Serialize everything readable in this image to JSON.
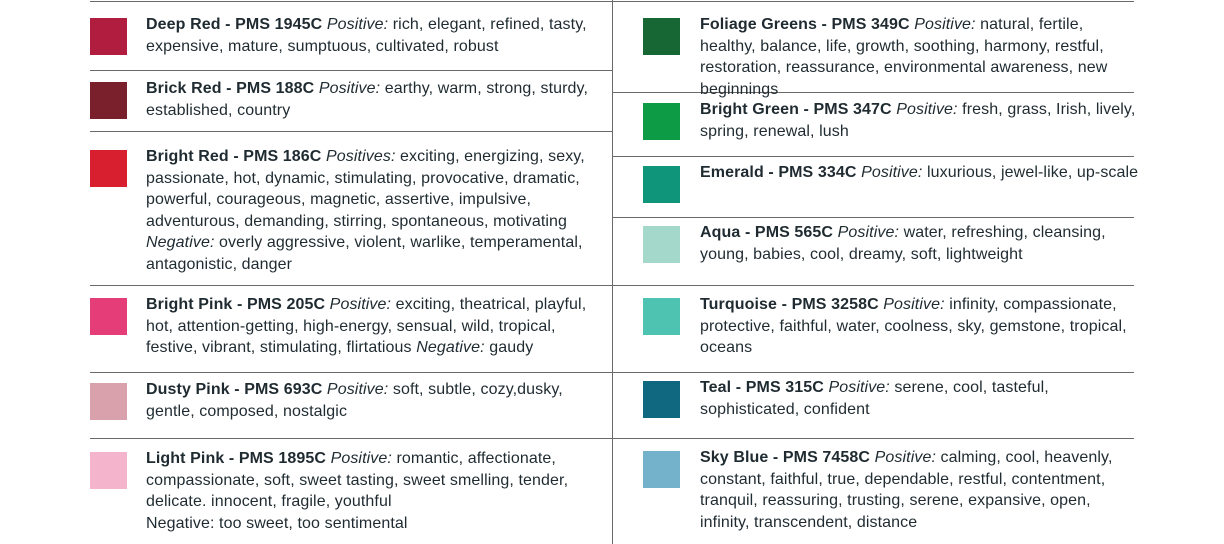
{
  "left": [
    {
      "title": "Deep Red - PMS 1945C",
      "pos_label": "Positive:",
      "pos_text": "rich, elegant, refined, tasty, expensive, mature, sumptuous, cultivated, robust",
      "color": "#b01d3f"
    },
    {
      "title": "Brick Red - PMS 188C",
      "pos_label": "Positive:",
      "pos_text": "earthy, warm, strong, sturdy, established, country",
      "color": "#7a1f2c"
    },
    {
      "title": "Bright Red - PMS 186C",
      "pos_label": "Positives:",
      "pos_text": "exciting, energizing, sexy, passionate, hot, dynamic, stimulating, provocative, dramatic, powerful, courageous, magnetic, assertive, impulsive, adventurous, demanding, stirring, spontaneous, motivating",
      "neg_label": "Negative:",
      "neg_text": "overly aggressive, violent, warlike, temperamental, antagonistic, danger",
      "color": "#d71f30"
    },
    {
      "title": "Bright Pink - PMS 205C",
      "pos_label": "Positive:",
      "pos_text": "exciting, theatrical, playful, hot, attention-getting, high-energy, sensual, wild, tropical, festive, vibrant, stimulating, flirtatious",
      "neg_label": "Negative:",
      "neg_text": "gaudy",
      "color": "#e43d78"
    },
    {
      "title": "Dusty Pink - PMS 693C",
      "pos_label": "Positive:",
      "pos_text": "soft, subtle, cozy,dusky, gentle, composed, nostalgic",
      "color": "#d8a1ac"
    },
    {
      "title": "Light Pink - PMS 1895C",
      "pos_label": "Positive:",
      "pos_text": "romantic, affectionate, compassionate, soft, sweet tasting, sweet smelling, tender, delicate. innocent, fragile, youthful",
      "note": "Negative: too sweet, too sentimental",
      "color": "#f4b5cc"
    }
  ],
  "right": [
    {
      "title": "Foliage Greens - PMS 349C",
      "pos_label": "Positive:",
      "pos_text": "natural, fertile, healthy, balance, life, growth, soothing, harmony, restful, restoration, reassurance, environmental awareness, new beginnings",
      "color": "#176735"
    },
    {
      "title": "Bright Green - PMS 347C",
      "pos_label": "Positive:",
      "pos_text": "fresh, grass, Irish, lively, spring, renewal, lush",
      "color": "#0d9b46"
    },
    {
      "title": "Emerald - PMS 334C",
      "pos_label": "Positive:",
      "pos_text": "luxurious, jewel-like, up-scale",
      "color": "#0f957a"
    },
    {
      "title": "Aqua - PMS 565C",
      "pos_label": "Positive:",
      "pos_text": "water, refreshing, cleansing, young, babies, cool, dreamy, soft, lightweight",
      "color": "#a3d8cb"
    },
    {
      "title": "Turquoise - PMS 3258C",
      "pos_label": "Positive:",
      "pos_text": "infinity, compassionate, protective, faithful, water, coolness, sky, gemstone, tropical, oceans",
      "color": "#4ec3b1"
    },
    {
      "title": "Teal - PMS 315C",
      "pos_label": "Positive:",
      "pos_text": "serene, cool, tasteful, sophisticated, confident",
      "color": "#0f6780"
    },
    {
      "title": "Sky Blue - PMS 7458C",
      "pos_label": "Positive:",
      "pos_text": "calming, cool, heavenly, constant, faithful, true, dependable, restful, contentment, tranquil, reassuring, trusting, serene, expansive, open, infinity, transcendent, distance",
      "color": "#74b1cb"
    }
  ]
}
